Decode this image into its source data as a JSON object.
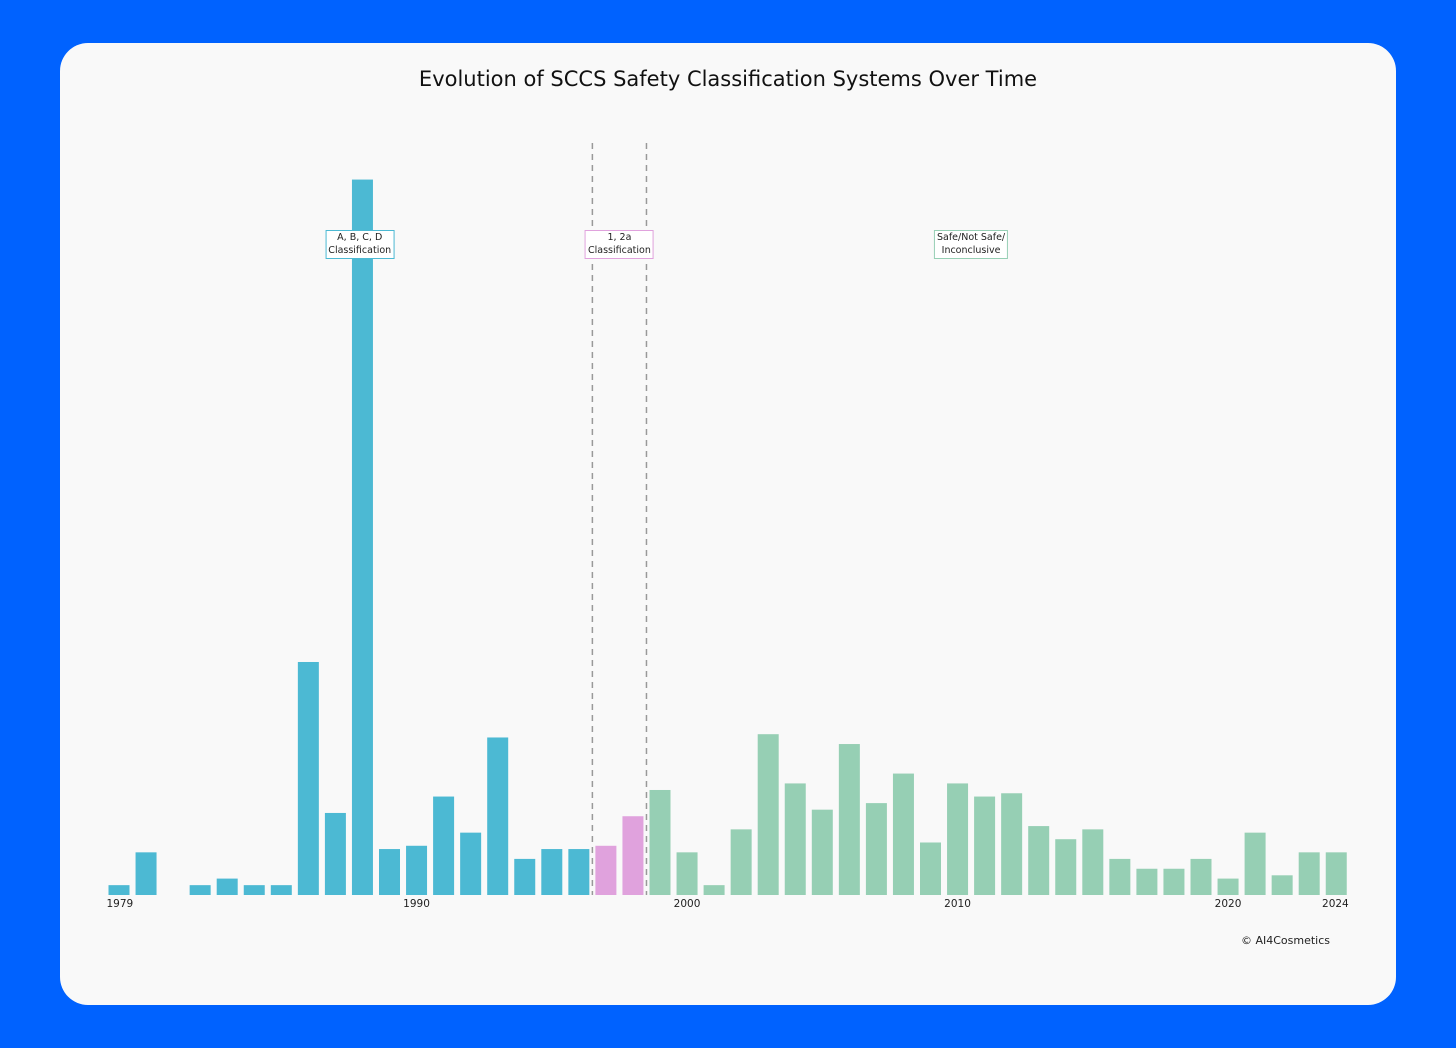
{
  "chart_data": {
    "type": "bar",
    "title": "Evolution of SCCS Safety Classification Systems Over Time",
    "xlabel": "",
    "ylabel": "",
    "x_range": [
      1979,
      2024
    ],
    "y_max": 220,
    "tick_labels": [
      "1979",
      "1990",
      "2000",
      "2010",
      "2020",
      "2024"
    ],
    "grid": false,
    "series": [
      {
        "color": "#4cb9d3",
        "x": [
          1979,
          1980,
          1981,
          1982,
          1983,
          1984,
          1985,
          1986,
          1987,
          1988,
          1989,
          1990,
          1991,
          1992,
          1993,
          1994,
          1995,
          1996
        ],
        "values": [
          3,
          13,
          0,
          3,
          5,
          3,
          3,
          71,
          25,
          218,
          14,
          15,
          30,
          19,
          48,
          11,
          14,
          14
        ]
      },
      {
        "color": "#e0a2dd",
        "x": [
          1997,
          1998
        ],
        "values": [
          15,
          24
        ]
      },
      {
        "color": "#96cfb4",
        "x": [
          1999,
          2000,
          2001,
          2002,
          2003,
          2004,
          2005,
          2006,
          2007,
          2008,
          2009,
          2010,
          2011,
          2012,
          2013,
          2014,
          2015,
          2016,
          2017,
          2018,
          2019,
          2020,
          2021,
          2022,
          2023,
          2024
        ],
        "values": [
          32,
          13,
          3,
          20,
          49,
          34,
          26,
          46,
          28,
          37,
          16,
          34,
          30,
          31,
          21,
          17,
          20,
          11,
          8,
          8,
          11,
          5,
          19,
          6,
          13,
          13
        ]
      }
    ],
    "period_dividers": [
      1996.5,
      1998.5
    ],
    "annotations": [
      {
        "text": "A, B, C, D\nClassification",
        "color": "#4cb9d3"
      },
      {
        "text": "1, 2a\nClassification",
        "color": "#e0a2dd"
      },
      {
        "text": "Safe/Not Safe/\nInconclusive",
        "color": "#96cfb4"
      }
    ]
  },
  "footer": "© AI4Cosmetics"
}
